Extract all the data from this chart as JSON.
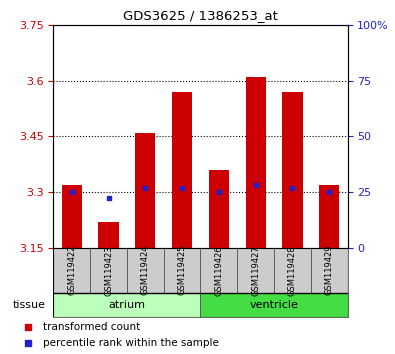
{
  "title": "GDS3625 / 1386253_at",
  "samples": [
    "GSM119422",
    "GSM119423",
    "GSM119424",
    "GSM119425",
    "GSM119426",
    "GSM119427",
    "GSM119428",
    "GSM119429"
  ],
  "bar_tops": [
    3.32,
    3.22,
    3.46,
    3.57,
    3.36,
    3.61,
    3.57,
    3.32
  ],
  "bar_bottom": 3.15,
  "blue_values": [
    3.3,
    3.285,
    3.31,
    3.31,
    3.3,
    3.32,
    3.31,
    3.3
  ],
  "ylim_left": [
    3.15,
    3.75
  ],
  "ylim_right": [
    0,
    100
  ],
  "yticks_left": [
    3.15,
    3.3,
    3.45,
    3.6,
    3.75
  ],
  "ytick_labels_left": [
    "3.15",
    "3.3",
    "3.45",
    "3.6",
    "3.75"
  ],
  "yticks_right": [
    0,
    25,
    50,
    75,
    100
  ],
  "ytick_labels_right": [
    "0",
    "25",
    "50",
    "75",
    "100%"
  ],
  "bar_color": "#cc0000",
  "blue_color": "#2222cc",
  "tissue_groups": [
    {
      "label": "atrium",
      "indices": [
        0,
        1,
        2,
        3
      ],
      "color": "#bbffbb"
    },
    {
      "label": "ventricle",
      "indices": [
        4,
        5,
        6,
        7
      ],
      "color": "#44dd44"
    }
  ],
  "tissue_label": "tissue",
  "legend_items": [
    {
      "label": "transformed count",
      "color": "#cc0000"
    },
    {
      "label": "percentile rank within the sample",
      "color": "#2222cc"
    }
  ],
  "tick_color_left": "#cc0000",
  "tick_color_right": "#2222cc",
  "cell_color": "#cccccc",
  "cell_edge_color": "#555555",
  "grid_color": "#000000",
  "bg_color": "#ffffff"
}
